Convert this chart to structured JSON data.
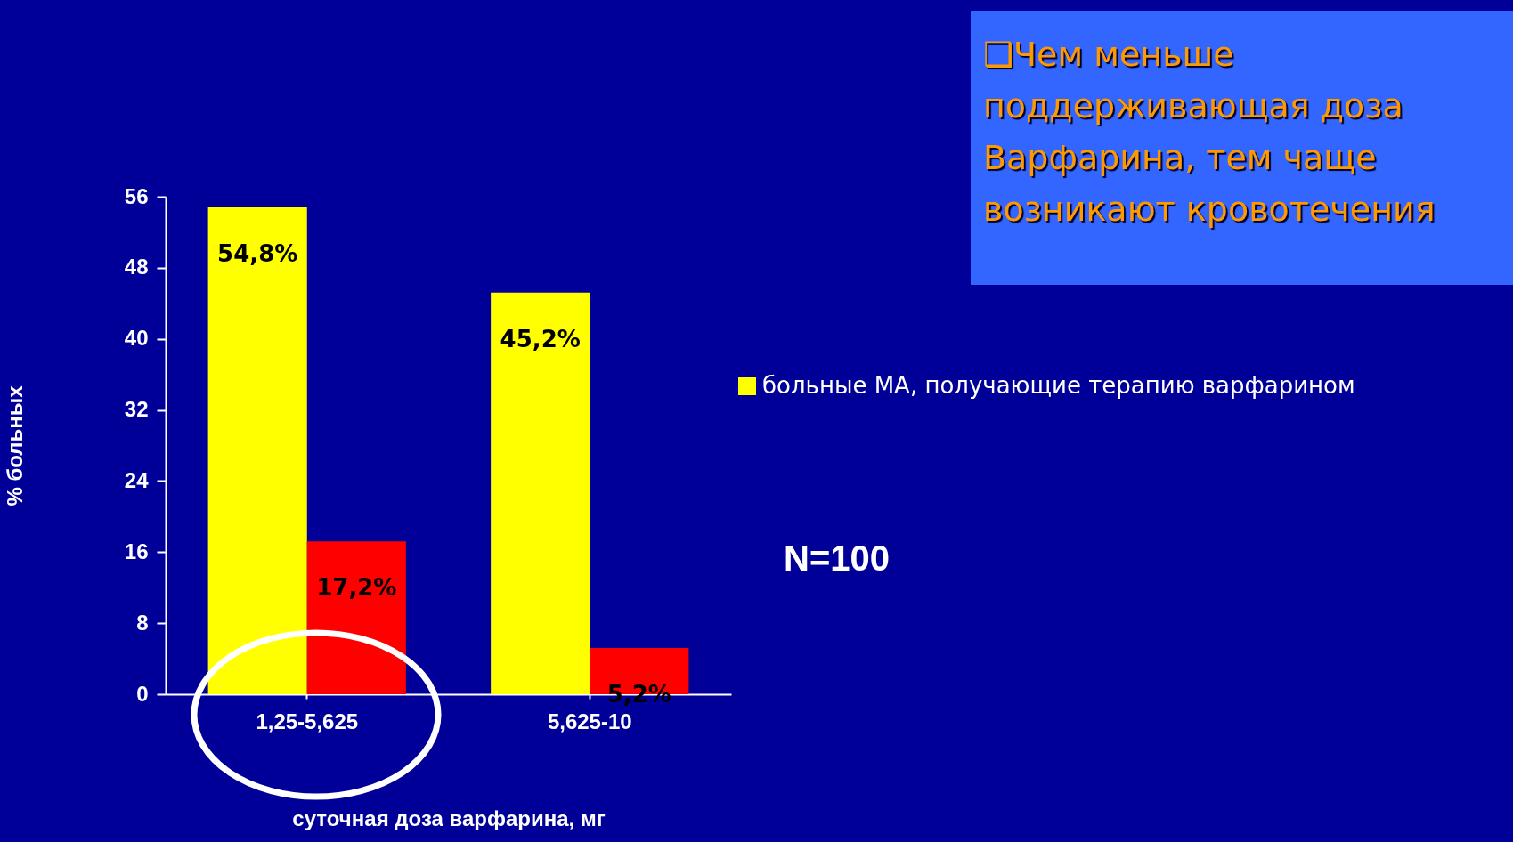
{
  "chart_data": {
    "type": "bar",
    "categories": [
      "1,25-5,625",
      "5,625-10"
    ],
    "series": [
      {
        "name": "больные МА, получающие терапию варфарином",
        "color": "#ffff00",
        "values": [
          54.8,
          45.2
        ],
        "value_labels": [
          "54,8%",
          "45,2%"
        ]
      },
      {
        "color": "#ff0000",
        "values": [
          17.2,
          5.2
        ],
        "value_labels": [
          "17,2%",
          "5,2%"
        ]
      }
    ],
    "xlabel": "суточная доза варфарина, мг",
    "ylabel": "% больных",
    "ylim": [
      0,
      56
    ],
    "yticks": [
      0,
      8,
      16,
      24,
      32,
      40,
      48,
      56
    ],
    "grid": false,
    "legend": "right",
    "annotations": [
      "❑Чем меньше поддерживающая доза Варфарина, тем чаще возникают кровотечения",
      "N=100"
    ]
  }
}
